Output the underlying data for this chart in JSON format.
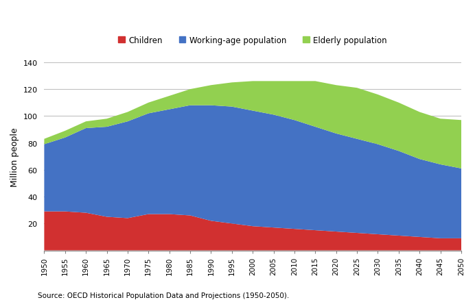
{
  "years": [
    1950,
    1955,
    1960,
    1965,
    1970,
    1975,
    1980,
    1985,
    1990,
    1995,
    2000,
    2005,
    2010,
    2015,
    2020,
    2025,
    2030,
    2035,
    2040,
    2045,
    2050
  ],
  "children": [
    29,
    29,
    28,
    25,
    24,
    27,
    27,
    26,
    22,
    20,
    18,
    17,
    16,
    15,
    14,
    13,
    12,
    11,
    10,
    9,
    9
  ],
  "working_age": [
    50,
    55,
    63,
    67,
    72,
    75,
    78,
    82,
    86,
    87,
    86,
    84,
    81,
    77,
    73,
    70,
    67,
    63,
    58,
    55,
    52
  ],
  "elderly": [
    4,
    5,
    5,
    6,
    7,
    8,
    10,
    12,
    15,
    18,
    22,
    25,
    29,
    34,
    36,
    38,
    37,
    36,
    35,
    34,
    36
  ],
  "children_color": "#d13030",
  "working_age_color": "#4472c4",
  "elderly_color": "#92d050",
  "ylabel": "Million people",
  "ylim": [
    0,
    140
  ],
  "yticks": [
    0,
    20,
    40,
    60,
    80,
    100,
    120,
    140
  ],
  "source_text": "Source: OECD Historical Population Data and Projections (1950-2050).",
  "legend_labels": [
    "Children",
    "Working-age population",
    "Elderly population"
  ],
  "background_color": "#ffffff",
  "grid_color": "#c0c0c0",
  "border_color": "#808080"
}
